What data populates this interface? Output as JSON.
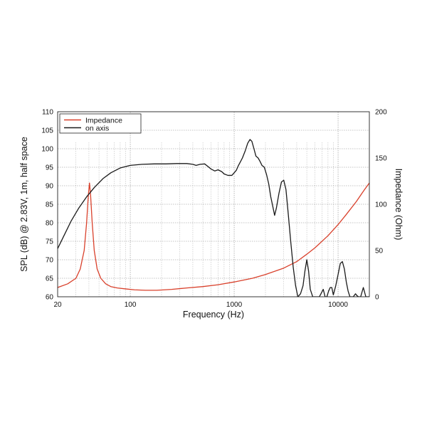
{
  "chart_data": {
    "type": "line",
    "xlabel": "Frequency (Hz)",
    "ylabel": "SPL (dB) @ 2.83V, 1m, half space",
    "y2label": "Impedance (Ohm)",
    "xscale": "log",
    "xlim": [
      20,
      20000
    ],
    "ylim": [
      60,
      110
    ],
    "y2lim": [
      0,
      200
    ],
    "xticks": [
      20,
      100,
      1000,
      10000
    ],
    "xtick_labels": [
      "20",
      "100",
      "1000",
      "10000"
    ],
    "yticks": [
      60,
      65,
      70,
      75,
      80,
      85,
      90,
      95,
      100,
      105,
      110
    ],
    "yticks_labels": [
      "60",
      "65",
      "70",
      "75",
      "80",
      "85",
      "90",
      "95",
      "100",
      "105",
      "110"
    ],
    "y2ticks": [
      0,
      50,
      100,
      150,
      200
    ],
    "y2tick_labels": [
      "0",
      "50",
      "100",
      "150",
      "200"
    ],
    "grid": true,
    "legend": {
      "placement": "top-left"
    },
    "colors": {
      "impedance": "#d9402b",
      "on_axis": "#1a1a1a"
    },
    "series": [
      {
        "name": "Impedance",
        "axis": "right",
        "x": [
          20,
          25,
          30,
          33,
          36,
          38,
          39.5,
          40.5,
          41.5,
          43,
          45,
          48,
          52,
          58,
          65,
          75,
          90,
          110,
          140,
          180,
          250,
          350,
          500,
          700,
          1000,
          1500,
          2000,
          3000,
          4000,
          5000,
          6000,
          8000,
          10000,
          12000,
          15000,
          18000,
          20000
        ],
        "y": [
          10,
          14,
          20,
          30,
          50,
          80,
          110,
          123,
          110,
          80,
          50,
          30,
          20,
          14,
          11,
          9.5,
          8.5,
          7.5,
          7,
          7,
          8,
          9.5,
          11,
          13,
          16,
          20,
          24,
          31,
          38,
          46,
          53,
          66,
          78,
          89,
          103,
          116,
          123
        ]
      },
      {
        "name": "on axis",
        "axis": "left",
        "x": [
          20,
          23,
          27,
          32,
          38,
          45,
          55,
          65,
          80,
          100,
          130,
          170,
          220,
          280,
          350,
          400,
          430,
          470,
          520,
          560,
          600,
          650,
          700,
          760,
          800,
          870,
          950,
          1000,
          1050,
          1100,
          1150,
          1200,
          1280,
          1350,
          1420,
          1480,
          1550,
          1620,
          1700,
          1780,
          1850,
          1950,
          2050,
          2150,
          2250,
          2350,
          2450,
          2550,
          2700,
          2850,
          3000,
          3150,
          3300,
          3500,
          3700,
          3900,
          4100,
          4350,
          4600,
          4800,
          5000,
          5200,
          5400,
          5700,
          6000,
          6300,
          6600,
          6900,
          7200,
          7500,
          7800,
          8100,
          8400,
          8700,
          9000,
          9500,
          10000,
          10500,
          11000,
          11500,
          12000,
          12500,
          13000,
          14000,
          14700,
          15200,
          15700,
          16500,
          17500,
          18500,
          20000
        ],
        "y": [
          73,
          76.5,
          80.5,
          84,
          87,
          89.5,
          92,
          93.5,
          94.8,
          95.5,
          95.8,
          95.9,
          95.9,
          96,
          96,
          95.8,
          95.5,
          95.8,
          95.9,
          95.2,
          94.5,
          94,
          94.3,
          93.8,
          93.2,
          92.8,
          92.8,
          93.5,
          94.2,
          95.5,
          96.5,
          97.5,
          99.5,
          101.5,
          102.5,
          102,
          100,
          98,
          97.5,
          96.5,
          95.5,
          95,
          93,
          90.5,
          87,
          84.5,
          82,
          84,
          88,
          91,
          91.5,
          89,
          83,
          75,
          68,
          63,
          60,
          60.8,
          63,
          67,
          70,
          67,
          62,
          60,
          60,
          60,
          60,
          61,
          62,
          60,
          60,
          61.5,
          62.5,
          62.5,
          60.5,
          63,
          66,
          69,
          69.5,
          67.5,
          64,
          61.5,
          60,
          60,
          60.8,
          60.3,
          60,
          60,
          62.5,
          60,
          60
        ]
      }
    ]
  }
}
